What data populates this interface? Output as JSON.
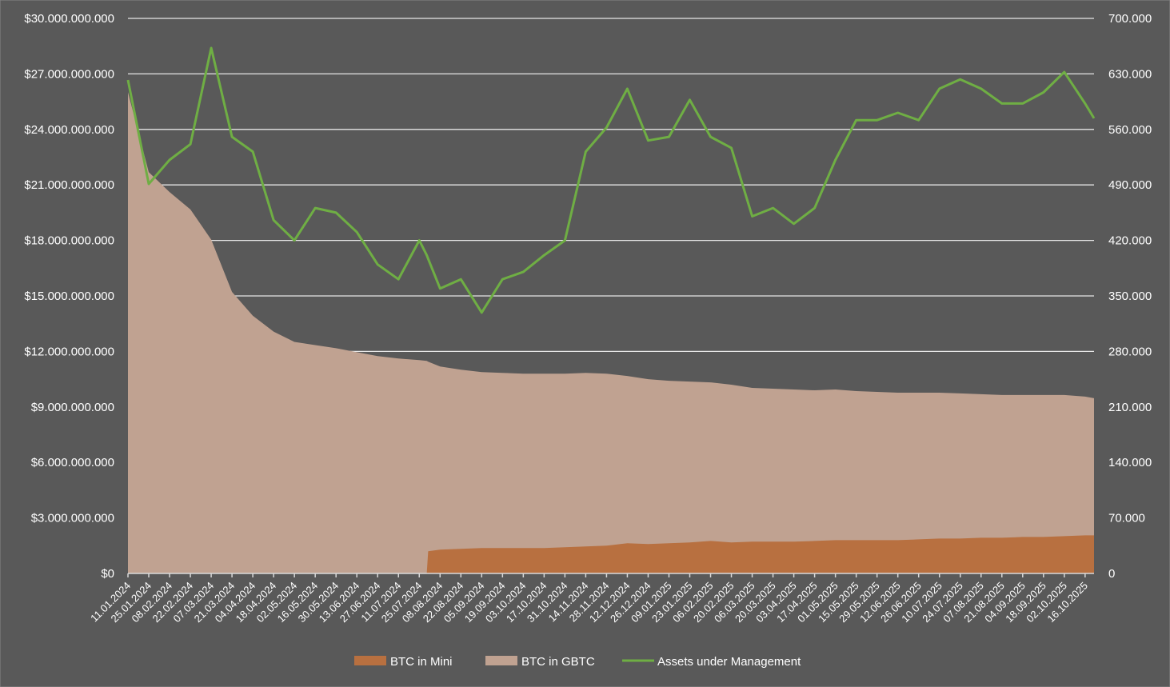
{
  "chart_data": {
    "type": "area+line",
    "title": "",
    "background": "#595959",
    "grid": true,
    "legend_position": "bottom",
    "x_tick_labels": [
      "11.01.2024",
      "25.01.2024",
      "08.02.2024",
      "22.02.2024",
      "07.03.2024",
      "21.03.2024",
      "04.04.2024",
      "18.04.2024",
      "02.05.2024",
      "16.05.2024",
      "30.05.2024",
      "13.06.2024",
      "27.06.2024",
      "11.07.2024",
      "25.07.2024",
      "08.08.2024",
      "22.08.2024",
      "05.09.2024",
      "19.09.2024",
      "03.10.2024",
      "17.10.2024",
      "31.10.2024",
      "14.11.2024",
      "28.11.2024",
      "12.12.2024",
      "26.12.2024",
      "09.01.2025",
      "23.01.2025",
      "06.02.2025",
      "20.02.2025",
      "06.03.2025",
      "20.03.2025",
      "03.04.2025",
      "17.04.2025",
      "01.05.2025",
      "15.05.2025",
      "29.05.2025",
      "12.06.2025",
      "26.06.2025",
      "10.07.2025",
      "24.07.2025",
      "07.08.2025",
      "21.08.2025",
      "04.09.2025",
      "18.09.2025",
      "02.10.2025",
      "16.10.2025"
    ],
    "x_range": [
      "11.01.2024",
      "22.10.2025"
    ],
    "y_left": {
      "min": 0,
      "max": 30000000000,
      "ticks": [
        "$0",
        "$3.000.000.000",
        "$6.000.000.000",
        "$9.000.000.000",
        "$12.000.000.000",
        "$15.000.000.000",
        "$18.000.000.000",
        "$21.000.000.000",
        "$24.000.000.000",
        "$27.000.000.000",
        "$30.000.000.000"
      ]
    },
    "y_right": {
      "min": 0,
      "max": 700000,
      "ticks": [
        "0",
        "70.000",
        "140.000",
        "210.000",
        "280.000",
        "350.000",
        "420.000",
        "490.000",
        "560.000",
        "630.000",
        "700.000"
      ]
    },
    "dates": [
      "11.01.2024",
      "25.01.2024",
      "08.02.2024",
      "22.02.2024",
      "07.03.2024",
      "21.03.2024",
      "04.04.2024",
      "18.04.2024",
      "02.05.2024",
      "16.05.2024",
      "30.05.2024",
      "13.06.2024",
      "27.06.2024",
      "11.07.2024",
      "25.07.2024",
      "30.07.2024",
      "31.07.2024",
      "08.08.2024",
      "22.08.2024",
      "05.09.2024",
      "19.09.2024",
      "03.10.2024",
      "17.10.2024",
      "31.10.2024",
      "14.11.2024",
      "28.11.2024",
      "12.12.2024",
      "26.12.2024",
      "09.01.2025",
      "23.01.2025",
      "06.02.2025",
      "20.02.2025",
      "06.03.2025",
      "20.03.2025",
      "03.04.2025",
      "17.04.2025",
      "01.05.2025",
      "15.05.2025",
      "29.05.2025",
      "12.06.2025",
      "26.06.2025",
      "10.07.2025",
      "24.07.2025",
      "07.08.2025",
      "21.08.2025",
      "04.09.2025",
      "18.09.2025",
      "02.10.2025",
      "16.10.2025",
      "22.10.2025"
    ],
    "series": [
      {
        "name": "BTC in Mini",
        "type": "stacked-area",
        "axis": "right",
        "color": "#B87040",
        "values": [
          0,
          0,
          0,
          0,
          0,
          0,
          0,
          0,
          0,
          0,
          0,
          0,
          0,
          0,
          0,
          0,
          28000,
          30000,
          31000,
          32000,
          32000,
          32000,
          32000,
          33000,
          34000,
          35000,
          38000,
          37000,
          38000,
          39000,
          41000,
          39000,
          40000,
          40000,
          40000,
          41000,
          42000,
          42000,
          42000,
          42000,
          43000,
          44000,
          44000,
          45000,
          45000,
          46000,
          46000,
          47000,
          48000,
          48000
        ]
      },
      {
        "name": "BTC in GBTC",
        "type": "stacked-area",
        "axis": "right",
        "color": "#C0A291",
        "values": [
          607000,
          506000,
          481000,
          459000,
          421000,
          355000,
          325000,
          305000,
          292000,
          288000,
          284000,
          279000,
          274000,
          271000,
          269000,
          268000,
          239000,
          231000,
          226000,
          222000,
          221000,
          220000,
          220000,
          219000,
          219000,
          217000,
          211000,
          208000,
          205000,
          203000,
          200000,
          199000,
          194000,
          193000,
          192000,
          190000,
          190000,
          188000,
          187000,
          186000,
          185000,
          184000,
          183000,
          181000,
          180000,
          179000,
          179000,
          178000,
          175000,
          173000
        ]
      },
      {
        "name": "Assets under Management",
        "type": "line",
        "axis": "left",
        "color": "#6FAE44",
        "values": [
          26670000000,
          21050000000,
          22350000000,
          23200000000,
          28400000000,
          23600000000,
          22800000000,
          19100000000,
          18000000000,
          19750000000,
          19500000000,
          18450000000,
          16700000000,
          15900000000,
          18000000000,
          17200000000,
          17000000000,
          15400000000,
          15900000000,
          14100000000,
          15900000000,
          16300000000,
          17200000000,
          18000000000,
          22800000000,
          24100000000,
          26200000000,
          23400000000,
          23600000000,
          25600000000,
          23600000000,
          23000000000,
          19300000000,
          19750000000,
          18900000000,
          19750000000,
          22350000000,
          24500000000,
          24500000000,
          24900000000,
          24500000000,
          26200000000,
          26700000000,
          26200000000,
          25400000000,
          25400000000,
          26000000000,
          27100000000,
          25400000000,
          24600000000
        ]
      }
    ]
  }
}
